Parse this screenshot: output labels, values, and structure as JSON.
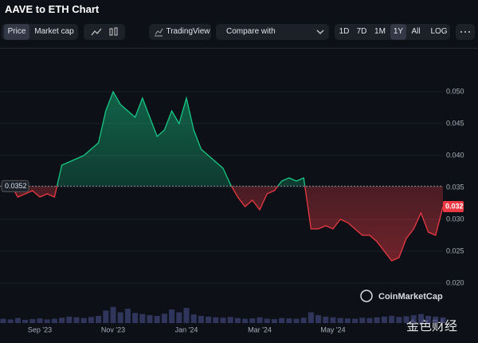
{
  "title": "AAVE to ETH Chart",
  "toolbar": {
    "price_tabs": [
      "Price",
      "Market cap"
    ],
    "tradingview": "TradingView",
    "compare": "Compare with",
    "ranges": [
      "1D",
      "7D",
      "1M",
      "1Y",
      "All"
    ],
    "log": "LOG"
  },
  "watermarks": [
    "CoinMarketCap",
    "金色财经"
  ],
  "chart_data": {
    "type": "line",
    "values": [
      0.036,
      0.0355,
      0.0335,
      0.034,
      0.0345,
      0.0335,
      0.034,
      0.0335,
      0.0385,
      0.039,
      0.0395,
      0.04,
      0.041,
      0.042,
      0.047,
      0.05,
      0.048,
      0.047,
      0.046,
      0.049,
      0.046,
      0.043,
      0.044,
      0.047,
      0.045,
      0.049,
      0.044,
      0.041,
      0.04,
      0.039,
      0.038,
      0.0355,
      0.0335,
      0.032,
      0.033,
      0.0315,
      0.034,
      0.0345,
      0.036,
      0.0365,
      0.036,
      0.0365,
      0.0285,
      0.0285,
      0.029,
      0.0285,
      0.03,
      0.0295,
      0.0285,
      0.0275,
      0.0275,
      0.0265,
      0.025,
      0.0235,
      0.024,
      0.027,
      0.0285,
      0.031,
      0.028,
      0.0275,
      0.032
    ],
    "volume": [
      12,
      10,
      14,
      9,
      11,
      13,
      10,
      12,
      15,
      18,
      16,
      14,
      17,
      20,
      35,
      45,
      30,
      40,
      28,
      25,
      22,
      20,
      26,
      38,
      30,
      42,
      24,
      20,
      18,
      16,
      15,
      17,
      14,
      12,
      13,
      16,
      12,
      11,
      14,
      13,
      12,
      15,
      30,
      22,
      18,
      16,
      14,
      13,
      12,
      15,
      14,
      16,
      18,
      20,
      17,
      19,
      22,
      25,
      20,
      18,
      16
    ],
    "volume_ylim": [
      0,
      100
    ],
    "baseline": 0.0352,
    "up_color": "#16c784",
    "down_color": "#ea3943",
    "xlim": [
      0,
      60
    ],
    "xticks": [
      {
        "value": 5,
        "label": "Sep '23"
      },
      {
        "value": 15,
        "label": "Nov '23"
      },
      {
        "value": 25,
        "label": "Jan '24"
      },
      {
        "value": 35,
        "label": "Mar '24"
      },
      {
        "value": 45,
        "label": "May '24"
      }
    ],
    "ylim": [
      0.01375,
      0.055
    ],
    "yticks": [
      {
        "value": 0.02,
        "label": "0.020"
      },
      {
        "value": 0.025,
        "label": "0.025"
      },
      {
        "value": 0.03,
        "label": "0.030"
      },
      {
        "value": 0.035,
        "label": "0.035"
      },
      {
        "value": 0.04,
        "label": "0.040"
      },
      {
        "value": 0.045,
        "label": "0.045"
      },
      {
        "value": 0.05,
        "label": "0.050"
      }
    ],
    "grid": true
  }
}
